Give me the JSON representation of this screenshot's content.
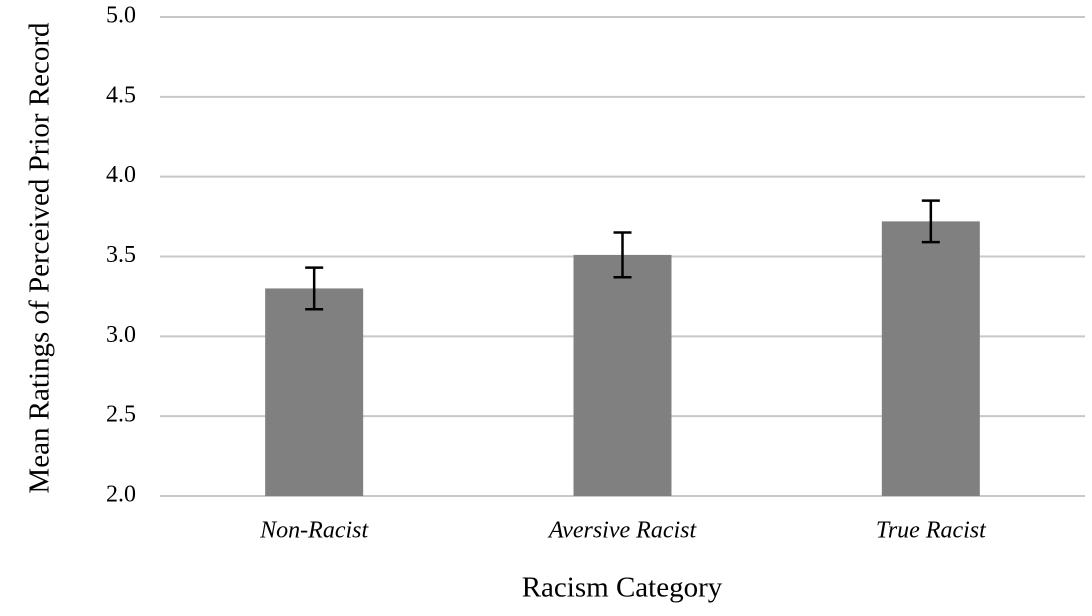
{
  "chart_data": {
    "type": "bar",
    "x_label": "Racism Category",
    "y_label": "Mean Ratings of Perceived Prior Record",
    "categories": [
      "Non-Racist",
      "Aversive Racist",
      "True Racist"
    ],
    "values": [
      3.3,
      3.51,
      3.72
    ],
    "errors": [
      0.13,
      0.14,
      0.13
    ],
    "color": "#808080",
    "ylim": [
      2,
      5
    ],
    "yticks": [
      {
        "value": 2,
        "label": "2.0"
      },
      2.5,
      {
        "value": 3,
        "label": "3.0"
      },
      3.5,
      {
        "value": 4,
        "label": "4.0"
      },
      4.5,
      {
        "value": 5,
        "label": "5.0"
      }
    ],
    "grid": true
  }
}
